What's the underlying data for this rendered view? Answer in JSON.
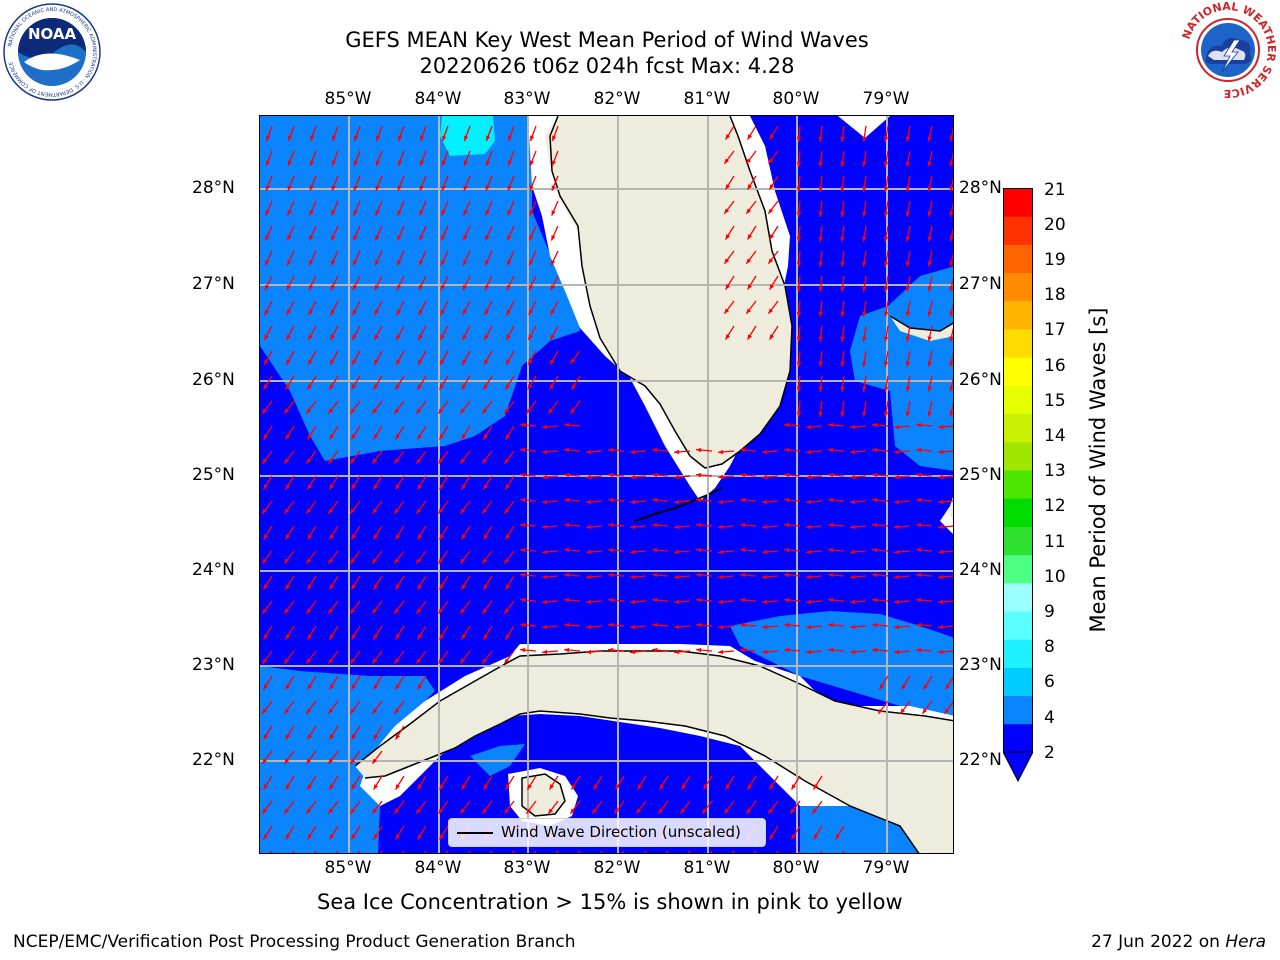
{
  "title": {
    "line1": "GEFS MEAN Key West Mean Period of Wind Waves",
    "line2": "20220626 t06z 024h fcst   Max: 4.28"
  },
  "map": {
    "lon_ticks": [
      "85°W",
      "84°W",
      "83°W",
      "82°W",
      "81°W",
      "80°W",
      "79°W"
    ],
    "lat_ticks": [
      "28°N",
      "27°N",
      "26°N",
      "25°N",
      "24°N",
      "23°N",
      "22°N"
    ],
    "colors": {
      "band_2_4": "#0000ff",
      "band_4_6": "#0a84ff",
      "band_6_8": "#00f0ff",
      "land": "#eeecdc",
      "arrows": "#ff0000",
      "coast": "#000000",
      "grid": "#b5b5b5"
    }
  },
  "legend": {
    "label": "Wind Wave Direction (unscaled)",
    "icon": "black-line"
  },
  "colorbar": {
    "title": "Mean Period of Wind Waves [s]",
    "ticks": [
      "21",
      "20",
      "19",
      "18",
      "17",
      "16",
      "15",
      "14",
      "13",
      "12",
      "11",
      "10",
      "9",
      "8",
      "6",
      "4",
      "2"
    ],
    "levels": [
      2,
      3,
      4,
      5,
      6,
      7,
      8,
      9,
      10,
      11,
      12,
      13,
      14,
      15,
      16,
      17,
      18,
      19,
      20,
      21
    ],
    "colors": [
      "#0000ff",
      "#0a84ff",
      "#00ccff",
      "#1ef0ff",
      "#5cffff",
      "#9cffff",
      "#4dff82",
      "#2fe02f",
      "#00dc00",
      "#4ce600",
      "#a0e600",
      "#c8f000",
      "#e6ff00",
      "#ffff00",
      "#ffdc00",
      "#ffb400",
      "#ff8c00",
      "#ff6400",
      "#ff3200",
      "#ff0000"
    ],
    "extend": "min"
  },
  "note": "Sea Ice Concentration > 15% is shown in pink to yellow",
  "footer": {
    "left": "NCEP/EMC/Verification Post Processing Product Generation Branch",
    "right_prefix": "27 Jun 2022 on ",
    "right_machine": "Hera"
  },
  "logos": {
    "noaa": {
      "text": "NOAA",
      "ring_text": "NATIONAL OCEANIC AND ATMOSPHERIC ADMINISTRATION · U.S. DEPARTMENT OF COMMERCE"
    },
    "nws": {
      "ring_text": "NATIONAL WEATHER SERVICE"
    }
  }
}
